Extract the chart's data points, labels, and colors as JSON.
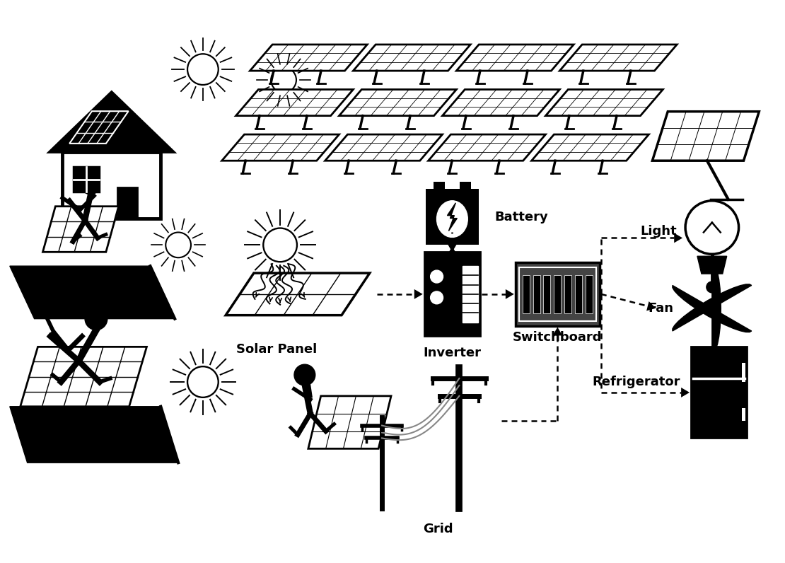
{
  "background_color": "#ffffff",
  "text_color": "#000000",
  "icon_color": "#000000",
  "labels": {
    "battery": "Battery",
    "solar_panel": "Solar Panel",
    "inverter": "Inverter",
    "switchboard": "Switchboard",
    "light": "Light",
    "fan": "Fan",
    "refrigerator": "Refrigerator",
    "grid": "Grid"
  },
  "label_fontsize": 12,
  "label_fontweight": "bold",
  "figsize": [
    11.1,
    7.96
  ],
  "dpi": 100
}
